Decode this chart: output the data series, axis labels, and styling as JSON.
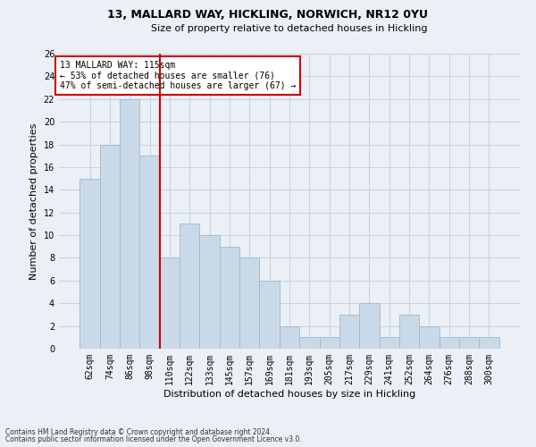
{
  "title1": "13, MALLARD WAY, HICKLING, NORWICH, NR12 0YU",
  "title2": "Size of property relative to detached houses in Hickling",
  "xlabel": "Distribution of detached houses by size in Hickling",
  "ylabel": "Number of detached properties",
  "categories": [
    "62sqm",
    "74sqm",
    "86sqm",
    "98sqm",
    "110sqm",
    "122sqm",
    "133sqm",
    "145sqm",
    "157sqm",
    "169sqm",
    "181sqm",
    "193sqm",
    "205sqm",
    "217sqm",
    "229sqm",
    "241sqm",
    "252sqm",
    "264sqm",
    "276sqm",
    "288sqm",
    "300sqm"
  ],
  "values": [
    15,
    18,
    22,
    17,
    8,
    11,
    10,
    9,
    8,
    6,
    2,
    1,
    1,
    3,
    4,
    1,
    3,
    2,
    1,
    1,
    1
  ],
  "bar_color": "#c9d9e8",
  "bar_edge_color": "#a0b8cc",
  "grid_color": "#c8d4e0",
  "vline_x_index": 4,
  "vline_color": "#cc0000",
  "annotation_text": "13 MALLARD WAY: 115sqm\n← 53% of detached houses are smaller (76)\n47% of semi-detached houses are larger (67) →",
  "annotation_box_color": "#ffffff",
  "annotation_box_edge": "#cc0000",
  "ylim": [
    0,
    26
  ],
  "yticks": [
    0,
    2,
    4,
    6,
    8,
    10,
    12,
    14,
    16,
    18,
    20,
    22,
    24,
    26
  ],
  "footer1": "Contains HM Land Registry data © Crown copyright and database right 2024.",
  "footer2": "Contains public sector information licensed under the Open Government Licence v3.0.",
  "bg_color": "#eaf0f6",
  "plot_bg_color": "#eaf0f6",
  "title1_fontsize": 9,
  "title2_fontsize": 8,
  "xlabel_fontsize": 8,
  "ylabel_fontsize": 8,
  "tick_fontsize": 7,
  "footer_fontsize": 5.5
}
